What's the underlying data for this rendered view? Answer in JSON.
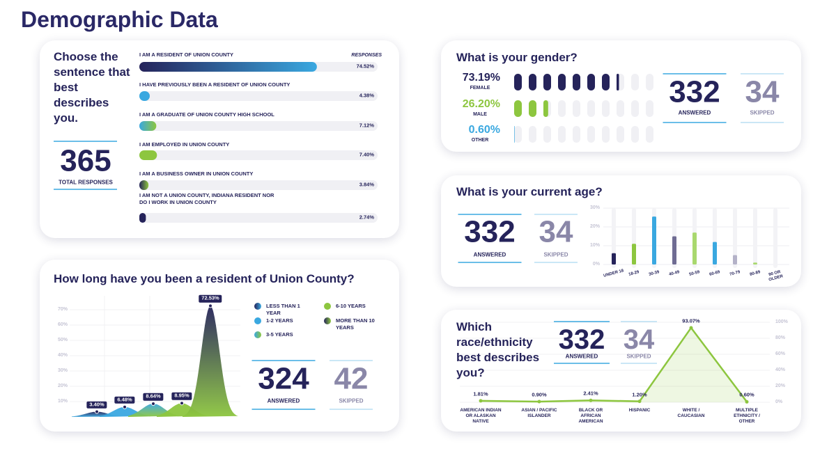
{
  "title": "Demographic Data",
  "chart_data": [
    {
      "type": "hbar",
      "title": "Choose the sentence that best describes you.",
      "x_label": "RESPONSES",
      "categories": [
        "I AM A RESIDENT OF UNION COUNTY",
        "I HAVE PREVIOUSLY BEEN A RESIDENT OF UNION COUNTY",
        "I AM A GRADUATE OF UNION COUNTY HIGH SCHOOL",
        "I AM EMPLOYED IN UNION COUNTY",
        "I AM A BUSINESS OWNER IN UNION COUNTY",
        "I AM NOT A UNION COUNTY, INDIANA RESIDENT NOR DO I WORK IN UNION COUNTY"
      ],
      "values": [
        74.52,
        4.38,
        7.12,
        7.4,
        3.84,
        2.74
      ],
      "value_labels": [
        "74.52%",
        "4.38%",
        "7.12%",
        "7.40%",
        "3.84%",
        "2.74%"
      ],
      "colors": [
        [
          "#25235a",
          "#3aa8e0"
        ],
        [
          "#3aa8e0",
          "#3aa8e0"
        ],
        [
          "#3aa8e0",
          "#8dc63f"
        ],
        [
          "#8dc63f",
          "#8dc63f"
        ],
        [
          "#25235a",
          "#8dc63f"
        ],
        [
          "#25235a",
          "#25235a"
        ]
      ],
      "xlim": [
        0,
        100
      ],
      "total": 365,
      "total_label": "TOTAL RESPONSES"
    },
    {
      "type": "pictograph",
      "title": "What is your gender?",
      "categories": [
        "FEMALE",
        "MALE",
        "OTHER"
      ],
      "values": [
        73.19,
        26.2,
        0.6
      ],
      "value_labels": [
        "73.19%",
        "26.20%",
        "0.60%"
      ],
      "colors": [
        "#25235a",
        "#8dc63f",
        "#3aa8e0"
      ],
      "xlim": [
        0,
        100
      ],
      "answered": 332,
      "answered_label": "ANSWERED",
      "skipped": 34,
      "skipped_label": "SKIPPED"
    },
    {
      "type": "bar",
      "title": "What is your current age?",
      "categories": [
        "UNDER 18",
        "18-29",
        "30-39",
        "40-49",
        "50-59",
        "60-69",
        "70-79",
        "80-89",
        "90 OR OLDER"
      ],
      "values": [
        6,
        11,
        25.5,
        15,
        17,
        12,
        5,
        1,
        0
      ],
      "colors": [
        "#25235a",
        "#8dc63f",
        "#3aa8e0",
        "#6f6c93",
        "#a9d86e",
        "#3aa8e0",
        "#b4b2c8",
        "#a9d86e",
        "#b4b2c8"
      ],
      "ylim": [
        0,
        30
      ],
      "yticks": [
        {
          "value": 0,
          "label": "0%"
        },
        {
          "value": 10,
          "label": "10%"
        },
        {
          "value": 20,
          "label": "20%"
        },
        {
          "value": 30,
          "label": "30%"
        }
      ],
      "grid": true,
      "answered": 332,
      "answered_label": "ANSWERED",
      "skipped": 34,
      "skipped_label": "SKIPPED"
    },
    {
      "type": "bell",
      "title": "How long have you been a resident of Union County?",
      "categories": [
        "LESS THAN 1 YEAR",
        "1-2 YEARS",
        "3-5 YEARS",
        "6-10 YEARS",
        "MORE THAN 10 YEARS"
      ],
      "values": [
        3.4,
        6.48,
        8.64,
        8.95,
        72.53
      ],
      "value_labels": [
        "3.40%",
        "6.48%",
        "8.64%",
        "8.95%",
        "72.53%"
      ],
      "colors": [
        [
          "#25235a",
          "#3aa8e0"
        ],
        [
          "#3aa8e0",
          "#3aa8e0"
        ],
        [
          "#3aa8e0",
          "#8dc63f"
        ],
        [
          "#8dc63f",
          "#8dc63f"
        ],
        [
          "#25235a",
          "#8dc63f"
        ]
      ],
      "ylim": [
        0,
        75
      ],
      "yticks": [
        {
          "value": 10,
          "label": "10%"
        },
        {
          "value": 20,
          "label": "20%"
        },
        {
          "value": 30,
          "label": "30%"
        },
        {
          "value": 40,
          "label": "40%"
        },
        {
          "value": 50,
          "label": "50%"
        },
        {
          "value": 60,
          "label": "60%"
        },
        {
          "value": 70,
          "label": "70%"
        }
      ],
      "grid": true,
      "answered": 324,
      "answered_label": "ANSWERED",
      "skipped": 42,
      "skipped_label": "SKIPPED"
    },
    {
      "type": "area",
      "title": "Which race/ethnicity best describes you?",
      "categories": [
        "AMERICAN INDIAN OR ALASKAN NATIVE",
        "ASIAN / PACIFIC ISLANDER",
        "BLACK OR AFRICAN AMERICAN",
        "HISPANIC",
        "WHITE / CAUCASIAN",
        "MULTIPLE ETHNICITY / OTHER"
      ],
      "values": [
        1.81,
        0.9,
        2.41,
        1.2,
        93.07,
        0.6
      ],
      "value_labels": [
        "1.81%",
        "0.90%",
        "2.41%",
        "1.20%",
        "93.07%",
        "0.60%"
      ],
      "color": "#8dc63f",
      "ylim": [
        0,
        100
      ],
      "yticks": [
        {
          "value": 0,
          "label": "0%"
        },
        {
          "value": 20,
          "label": "20%"
        },
        {
          "value": 40,
          "label": "40%"
        },
        {
          "value": 60,
          "label": "60%"
        },
        {
          "value": 80,
          "label": "80%"
        },
        {
          "value": 100,
          "label": "100%"
        }
      ],
      "grid": true,
      "answered": 332,
      "answered_label": "ANSWERED",
      "skipped": 34,
      "skipped_label": "SKIPPED"
    }
  ]
}
